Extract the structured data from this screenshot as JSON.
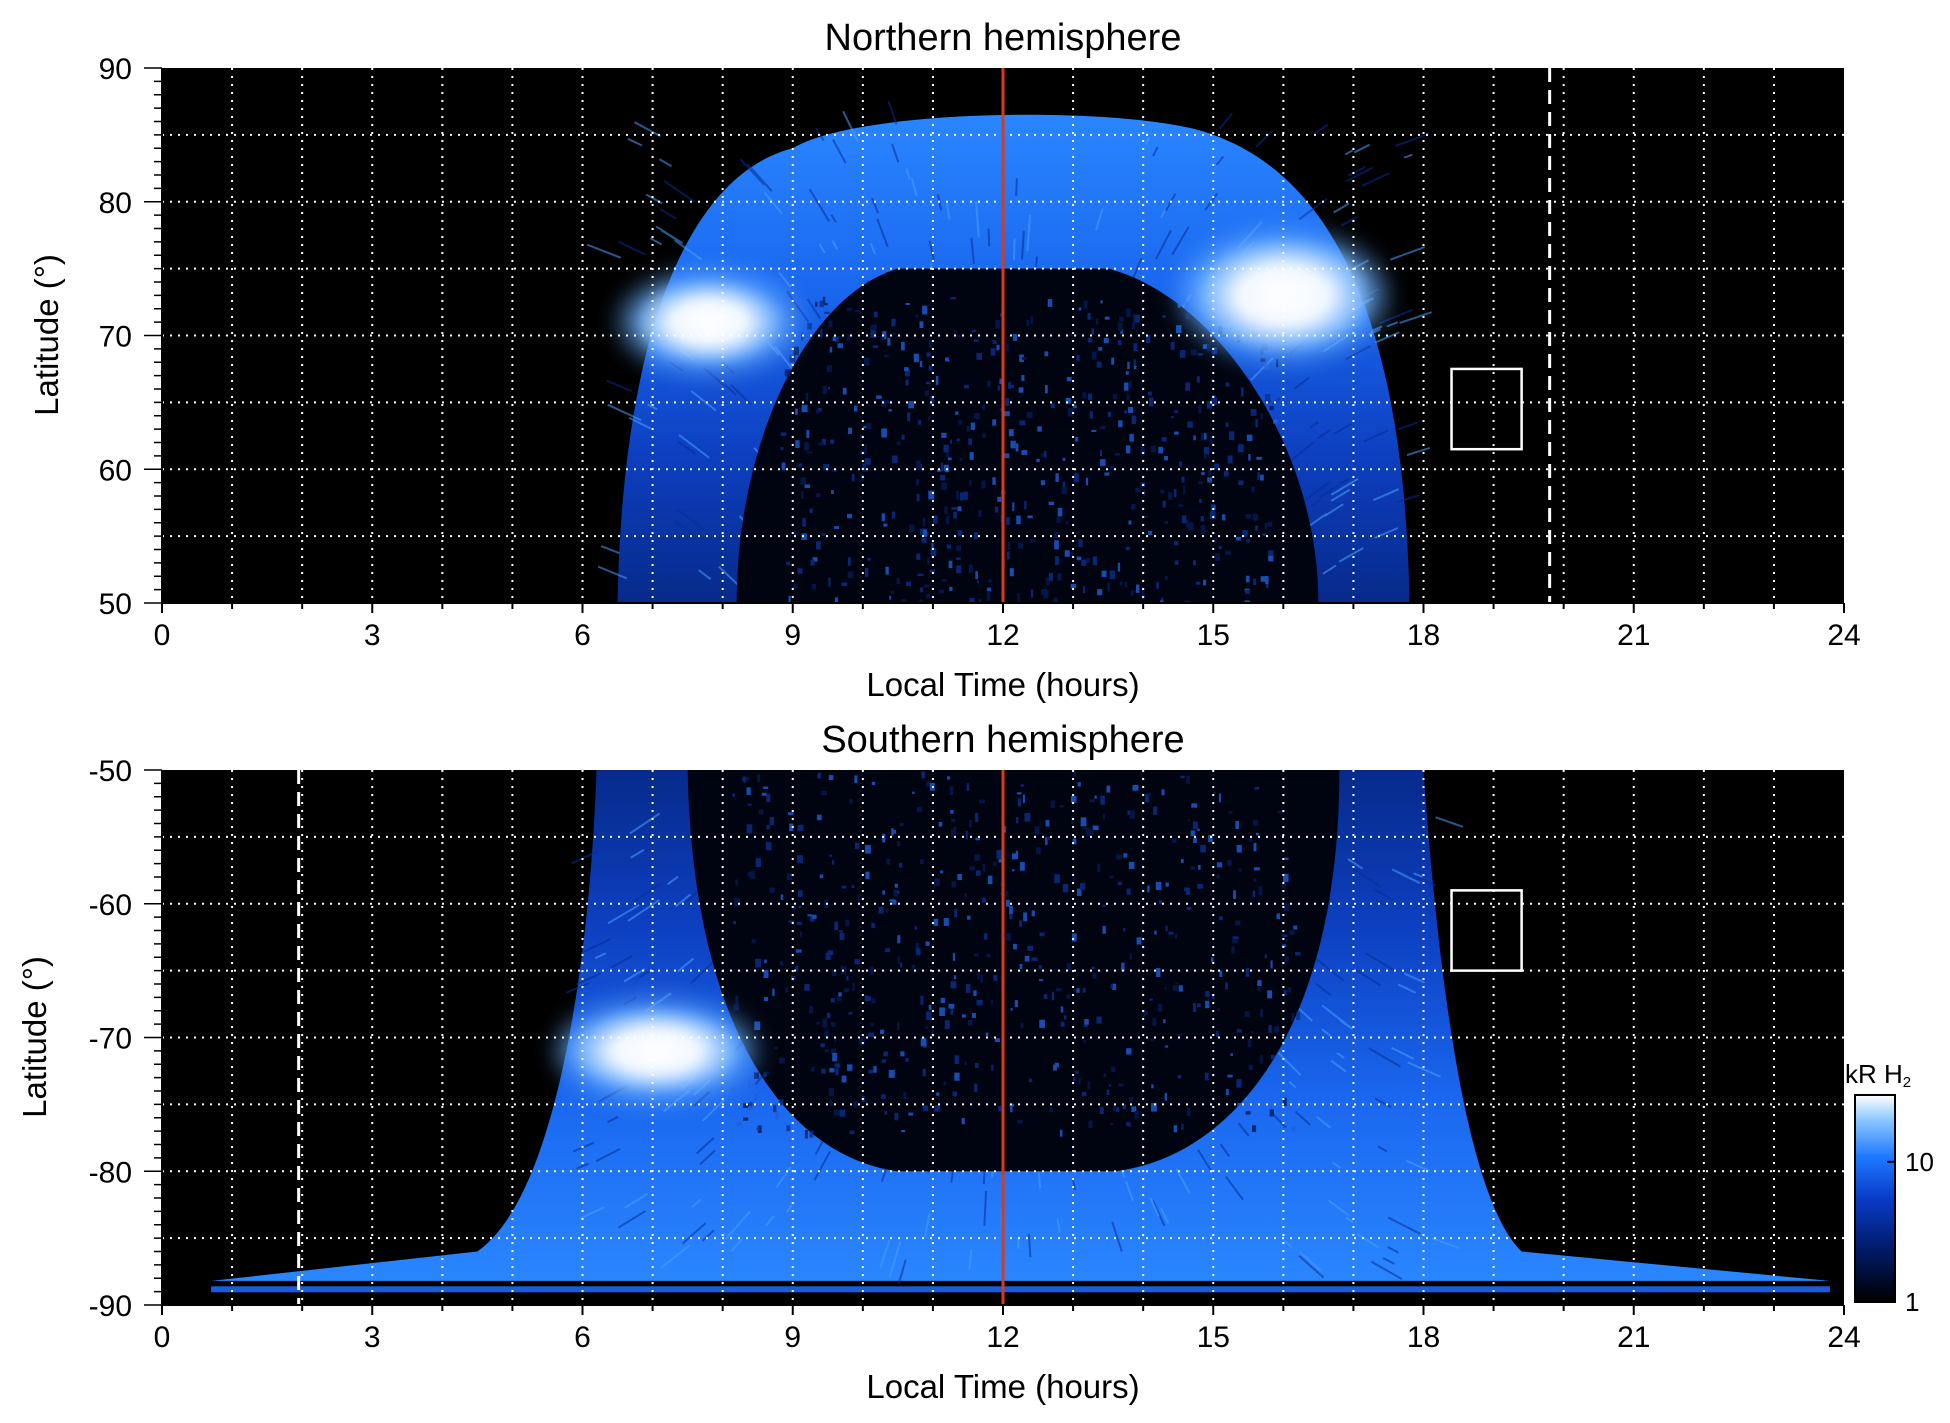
{
  "chart_data": [
    {
      "type": "heatmap",
      "title": "Northern hemisphere",
      "xlabel": "Local Time (hours)",
      "ylabel": "Latitude (°)",
      "xlim": [
        0,
        24
      ],
      "ylim": [
        50,
        90
      ],
      "x_ticks": [
        0,
        3,
        6,
        9,
        12,
        15,
        18,
        21,
        24
      ],
      "y_ticks": [
        50,
        60,
        70,
        80,
        90
      ],
      "x_gridlines": [
        1,
        2,
        3,
        4,
        5,
        6,
        7,
        8,
        9,
        10,
        11,
        12,
        13,
        14,
        15,
        16,
        17,
        18,
        19,
        20,
        21,
        22,
        23
      ],
      "y_gridlines": [
        55,
        60,
        65,
        70,
        75,
        80,
        85
      ],
      "grid": true,
      "background_color": "#000000",
      "colormap": [
        "#000000",
        "#001a66",
        "#0a3cc8",
        "#1e78ff",
        "#8cc8ff",
        "#ffffff"
      ],
      "features": {
        "illuminated_region": {
          "lt_range": [
            6.5,
            17.8
          ],
          "top_lat": 87
        },
        "polar_dark_region": {
          "lt_range": [
            8.2,
            16.5
          ],
          "top_lat": 75
        },
        "bright_spots": [
          {
            "lt_range": [
              6.8,
              8.8
            ],
            "lat_range": [
              68,
              74
            ]
          },
          {
            "lt_range": [
              14.8,
              17.2
            ],
            "lat_range": [
              69,
              77
            ]
          }
        ]
      },
      "noon_line": {
        "x": 12,
        "color": "#d93a1a"
      },
      "dashed_line": {
        "x": 19.8,
        "color": "#ffffff"
      },
      "box": {
        "x_range": [
          18.4,
          19.4
        ],
        "y_range": [
          61.5,
          67.5
        ],
        "color": "#ffffff"
      }
    },
    {
      "type": "heatmap",
      "title": "Southern hemisphere",
      "xlabel": "Local Time (hours)",
      "ylabel": "Latitude (°)",
      "xlim": [
        0,
        24
      ],
      "ylim": [
        -90,
        -50
      ],
      "x_ticks": [
        0,
        3,
        6,
        9,
        12,
        15,
        18,
        21,
        24
      ],
      "y_ticks": [
        -50,
        -60,
        -70,
        -80,
        -90
      ],
      "x_gridlines": [
        1,
        2,
        3,
        4,
        5,
        6,
        7,
        8,
        9,
        10,
        11,
        12,
        13,
        14,
        15,
        16,
        17,
        18,
        19,
        20,
        21,
        22,
        23
      ],
      "y_gridlines": [
        -55,
        -60,
        -65,
        -70,
        -75,
        -80,
        -85
      ],
      "grid": true,
      "background_color": "#000000",
      "colormap": [
        "#000000",
        "#001a66",
        "#0a3cc8",
        "#1e78ff",
        "#8cc8ff",
        "#ffffff"
      ],
      "features": {
        "illuminated_region": {
          "lt_range": [
            6.0,
            18.2
          ],
          "bottom_lat": -88
        },
        "polar_dark_region": {
          "lt_range": [
            7.5,
            16.8
          ],
          "bottom_lat": -80
        },
        "bright_spots": [
          {
            "lt_range": [
              5.9,
              8.2
            ],
            "lat_range": [
              -74,
              -68
            ]
          }
        ]
      },
      "noon_line": {
        "x": 12,
        "color": "#d93a1a"
      },
      "dashed_line": {
        "x": 1.95,
        "color": "#ffffff"
      },
      "box": {
        "x_range": [
          18.4,
          19.4
        ],
        "y_range": [
          -65,
          -59
        ],
        "color": "#ffffff"
      }
    }
  ],
  "colorbar": {
    "label_main": "kR H",
    "label_sub": "2",
    "scale": "log",
    "range": [
      1,
      30
    ],
    "tick_labels": [
      "10",
      "1"
    ],
    "tick_values": [
      10,
      1
    ]
  }
}
